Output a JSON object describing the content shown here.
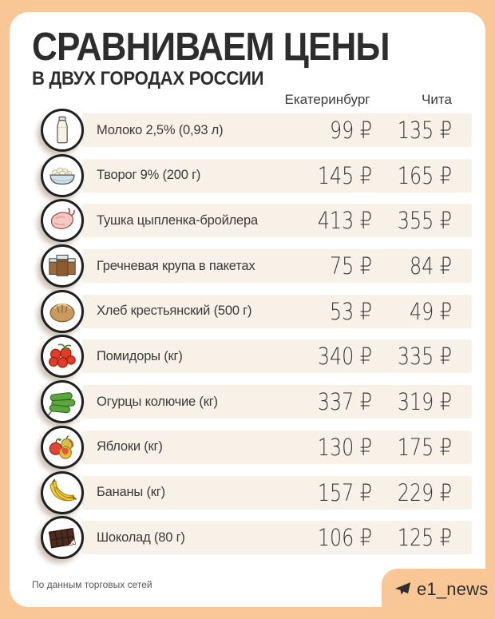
{
  "page": {
    "title": "СРАВНИВАЕМ ЦЕНЫ",
    "subtitle": "В ДВУХ ГОРОДАХ РОССИИ",
    "source_note": "По данным торговых сетей",
    "channel_badge": {
      "handle": "e1_news",
      "icon": "telegram-icon"
    }
  },
  "columns": [
    "Екатеринбург",
    "Чита"
  ],
  "currency": "₽",
  "rows": [
    {
      "icon": "milk-bottle-icon",
      "label": "Молоко 2,5% (0,93 л)",
      "price_ekaterinburg": "99 ₽",
      "price_chita": "135 ₽"
    },
    {
      "icon": "cottage-cheese-icon",
      "label": "Творог 9% (200 г)",
      "price_ekaterinburg": "145 ₽",
      "price_chita": "165 ₽"
    },
    {
      "icon": "chicken-icon",
      "label": "Тушка цыпленка-бройлера",
      "price_ekaterinburg": "413 ₽",
      "price_chita": "355 ₽"
    },
    {
      "icon": "buckwheat-icon",
      "label": "Гречневая крупа в пакетах",
      "price_ekaterinburg": "75 ₽",
      "price_chita": "84 ₽"
    },
    {
      "icon": "bread-icon",
      "label": "Хлеб крестьянский (500 г)",
      "price_ekaterinburg": "53 ₽",
      "price_chita": "49 ₽"
    },
    {
      "icon": "tomatoes-icon",
      "label": "Помидоры (кг)",
      "price_ekaterinburg": "340 ₽",
      "price_chita": "335 ₽"
    },
    {
      "icon": "cucumbers-icon",
      "label": "Огурцы колючие (кг)",
      "price_ekaterinburg": "337 ₽",
      "price_chita": "319 ₽"
    },
    {
      "icon": "apples-icon",
      "label": "Яблоки (кг)",
      "price_ekaterinburg": "130 ₽",
      "price_chita": "175 ₽"
    },
    {
      "icon": "bananas-icon",
      "label": "Бананы (кг)",
      "price_ekaterinburg": "157 ₽",
      "price_chita": "229 ₽"
    },
    {
      "icon": "chocolate-icon",
      "label": "Шоколад (80 г)",
      "price_ekaterinburg": "106 ₽",
      "price_chita": "125 ₽"
    }
  ],
  "colors": {
    "background": "#f9c795",
    "card": "#ffffff",
    "row_strip": "#f8f1e8",
    "text": "#2d2d2d"
  },
  "chart_data": {
    "type": "table",
    "title": "СРАВНИВАЕМ ЦЕНЫ",
    "subtitle": "В ДВУХ ГОРОДАХ РОССИИ",
    "unit": "₽",
    "categories": [
      "Молоко 2,5% (0,93 л)",
      "Творог 9% (200 г)",
      "Тушка цыпленка-бройлера",
      "Гречневая крупа в пакетах",
      "Хлеб крестьянский (500 г)",
      "Помидоры (кг)",
      "Огурцы колючие (кг)",
      "Яблоки (кг)",
      "Бананы (кг)",
      "Шоколад (80 г)"
    ],
    "series": [
      {
        "name": "Екатеринбург",
        "values": [
          99,
          145,
          413,
          75,
          53,
          340,
          337,
          130,
          157,
          106
        ]
      },
      {
        "name": "Чита",
        "values": [
          135,
          165,
          355,
          84,
          49,
          335,
          319,
          175,
          229,
          125
        ]
      }
    ],
    "source": "По данным торговых сетей"
  }
}
